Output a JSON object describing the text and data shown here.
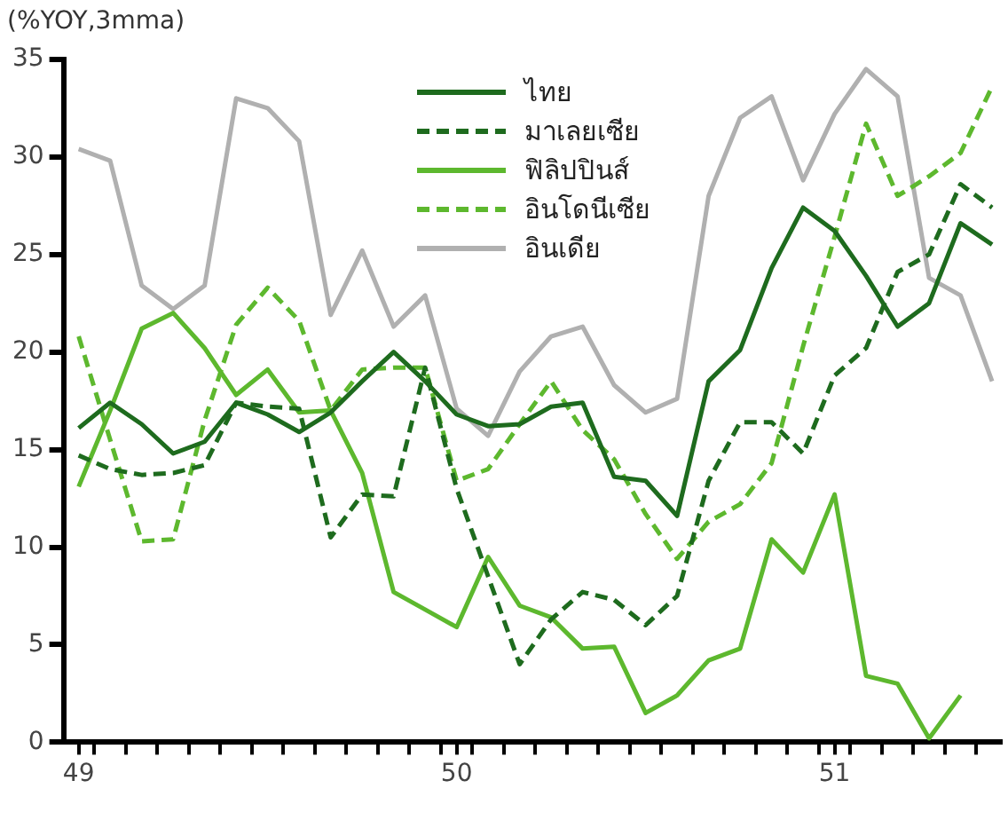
{
  "chart_data": {
    "type": "line",
    "ylabel": "(%YOY,3mma)",
    "x": [
      49,
      49.0833,
      49.1667,
      49.25,
      49.3333,
      49.4167,
      49.5,
      49.5833,
      49.6667,
      49.75,
      49.8333,
      49.9167,
      50,
      50.0833,
      50.1667,
      50.25,
      50.3333,
      50.4167,
      50.5,
      50.5833,
      50.6667,
      50.75,
      50.8333,
      50.9167,
      51,
      51.0833,
      51.1667,
      51.25,
      51.3333,
      51.4167
    ],
    "xlim": [
      48.96,
      51.44
    ],
    "xticks": [
      49,
      50,
      51,
      {
        "value": 49.0417,
        "label": null
      },
      {
        "value": 49.125,
        "label": null
      },
      {
        "value": 49.2083,
        "label": null
      },
      {
        "value": 49.2917,
        "label": null
      },
      {
        "value": 49.375,
        "label": null
      },
      {
        "value": 49.4583,
        "label": null
      },
      {
        "value": 49.5417,
        "label": null
      },
      {
        "value": 49.625,
        "label": null
      },
      {
        "value": 49.7083,
        "label": null
      },
      {
        "value": 49.7917,
        "label": null
      },
      {
        "value": 49.875,
        "label": null
      },
      {
        "value": 49.9583,
        "label": null
      },
      {
        "value": 50.0417,
        "label": null
      },
      {
        "value": 50.125,
        "label": null
      },
      {
        "value": 50.2083,
        "label": null
      },
      {
        "value": 50.2917,
        "label": null
      },
      {
        "value": 50.375,
        "label": null
      },
      {
        "value": 50.4583,
        "label": null
      },
      {
        "value": 50.5417,
        "label": null
      },
      {
        "value": 50.625,
        "label": null
      },
      {
        "value": 50.7083,
        "label": null
      },
      {
        "value": 50.7917,
        "label": null
      },
      {
        "value": 50.875,
        "label": null
      },
      {
        "value": 50.9583,
        "label": null
      },
      {
        "value": 51.0417,
        "label": null
      },
      {
        "value": 51.125,
        "label": null
      },
      {
        "value": 51.2083,
        "label": null
      },
      {
        "value": 51.2917,
        "label": null
      },
      {
        "value": 51.375,
        "label": null
      }
    ],
    "ylim": [
      0,
      35
    ],
    "yticks": [
      0,
      5,
      10,
      15,
      20,
      25,
      30,
      35
    ],
    "grid": false,
    "legend": "top",
    "marker": "none",
    "series": [
      {
        "name": "ไทย",
        "color": "#1e6b1e",
        "line_style": "solid",
        "values": [
          16.1,
          17.4,
          16.3,
          14.8,
          15.4,
          17.4,
          16.8,
          15.9,
          16.9,
          18.5,
          20.0,
          18.5,
          16.8,
          16.2,
          16.3,
          17.2,
          17.4,
          13.6,
          13.4,
          11.6,
          18.5,
          20.1,
          24.3,
          27.4,
          26.2,
          23.9,
          21.3,
          22.5,
          26.6,
          25.5
        ]
      },
      {
        "name": "มาเลยเซีย",
        "color": "#1e6b1e",
        "line_style": "dashed",
        "values": [
          14.7,
          14.0,
          13.7,
          13.8,
          14.2,
          17.4,
          17.2,
          17.1,
          10.5,
          12.7,
          12.6,
          19.2,
          13.0,
          8.5,
          4.0,
          6.3,
          7.7,
          7.3,
          6.0,
          7.5,
          13.4,
          16.4,
          16.4,
          14.8,
          18.8,
          20.2,
          24.1,
          25.0,
          28.6,
          27.4
        ]
      },
      {
        "name": "ฟิลิปปินส์",
        "color": "#5db82e",
        "line_style": "solid",
        "values": [
          13.1,
          17.0,
          21.2,
          22.0,
          20.2,
          17.8,
          19.1,
          16.9,
          17.0,
          13.8,
          7.7,
          6.8,
          5.9,
          9.5,
          7.0,
          6.4,
          4.8,
          4.9,
          1.5,
          2.4,
          4.2,
          4.8,
          10.4,
          8.7,
          12.7,
          3.4,
          3.0,
          0.2,
          2.4,
          null
        ]
      },
      {
        "name": "อินโดนีเซีย",
        "color": "#5db82e",
        "line_style": "dashed",
        "values": [
          20.8,
          15.5,
          10.3,
          10.4,
          16.5,
          21.4,
          23.3,
          21.6,
          17.0,
          19.1,
          19.2,
          19.2,
          13.4,
          14.0,
          16.3,
          18.5,
          16.0,
          14.5,
          11.7,
          9.4,
          11.3,
          12.2,
          14.3,
          20.3,
          25.9,
          31.7,
          28.0,
          29.0,
          30.2,
          33.6
        ]
      },
      {
        "name": "อินเดีย",
        "color": "#b0b0b0",
        "line_style": "solid",
        "values": [
          30.4,
          29.8,
          23.4,
          22.2,
          23.4,
          33.0,
          32.5,
          30.8,
          21.9,
          25.2,
          21.3,
          22.9,
          17.1,
          15.7,
          19.0,
          20.8,
          21.3,
          18.3,
          16.9,
          17.6,
          28.0,
          32.0,
          33.1,
          28.8,
          32.2,
          34.5,
          33.1,
          23.8,
          22.9,
          18.5
        ]
      }
    ]
  }
}
